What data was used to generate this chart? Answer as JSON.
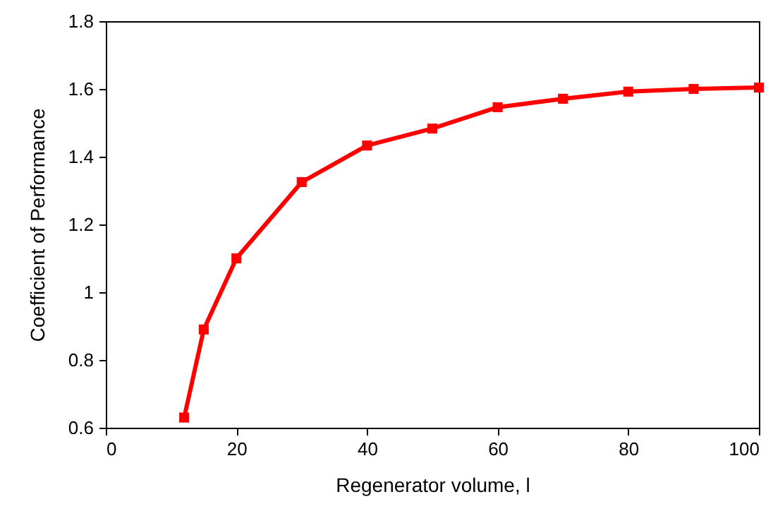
{
  "chart_data": {
    "type": "line",
    "xlabel": "Regenerator volume, l",
    "ylabel": "Coefficient of Performance",
    "x": [
      12,
      15,
      20,
      30,
      40,
      50,
      60,
      70,
      80,
      90,
      100
    ],
    "series": [
      {
        "color": "#ff0000",
        "values": [
          0.63,
          0.89,
          1.1,
          1.325,
          1.433,
          1.483,
          1.546,
          1.571,
          1.592,
          1.6,
          1.604
        ]
      }
    ],
    "xlim": [
      0,
      100
    ],
    "xticks": [
      0,
      20,
      40,
      60,
      80,
      100
    ],
    "ylim": [
      0.6,
      1.8
    ],
    "yticks": [
      0.6,
      0.8,
      1,
      1.2,
      1.4,
      1.6,
      1.8
    ],
    "marker": "square",
    "line_style": "solid"
  }
}
